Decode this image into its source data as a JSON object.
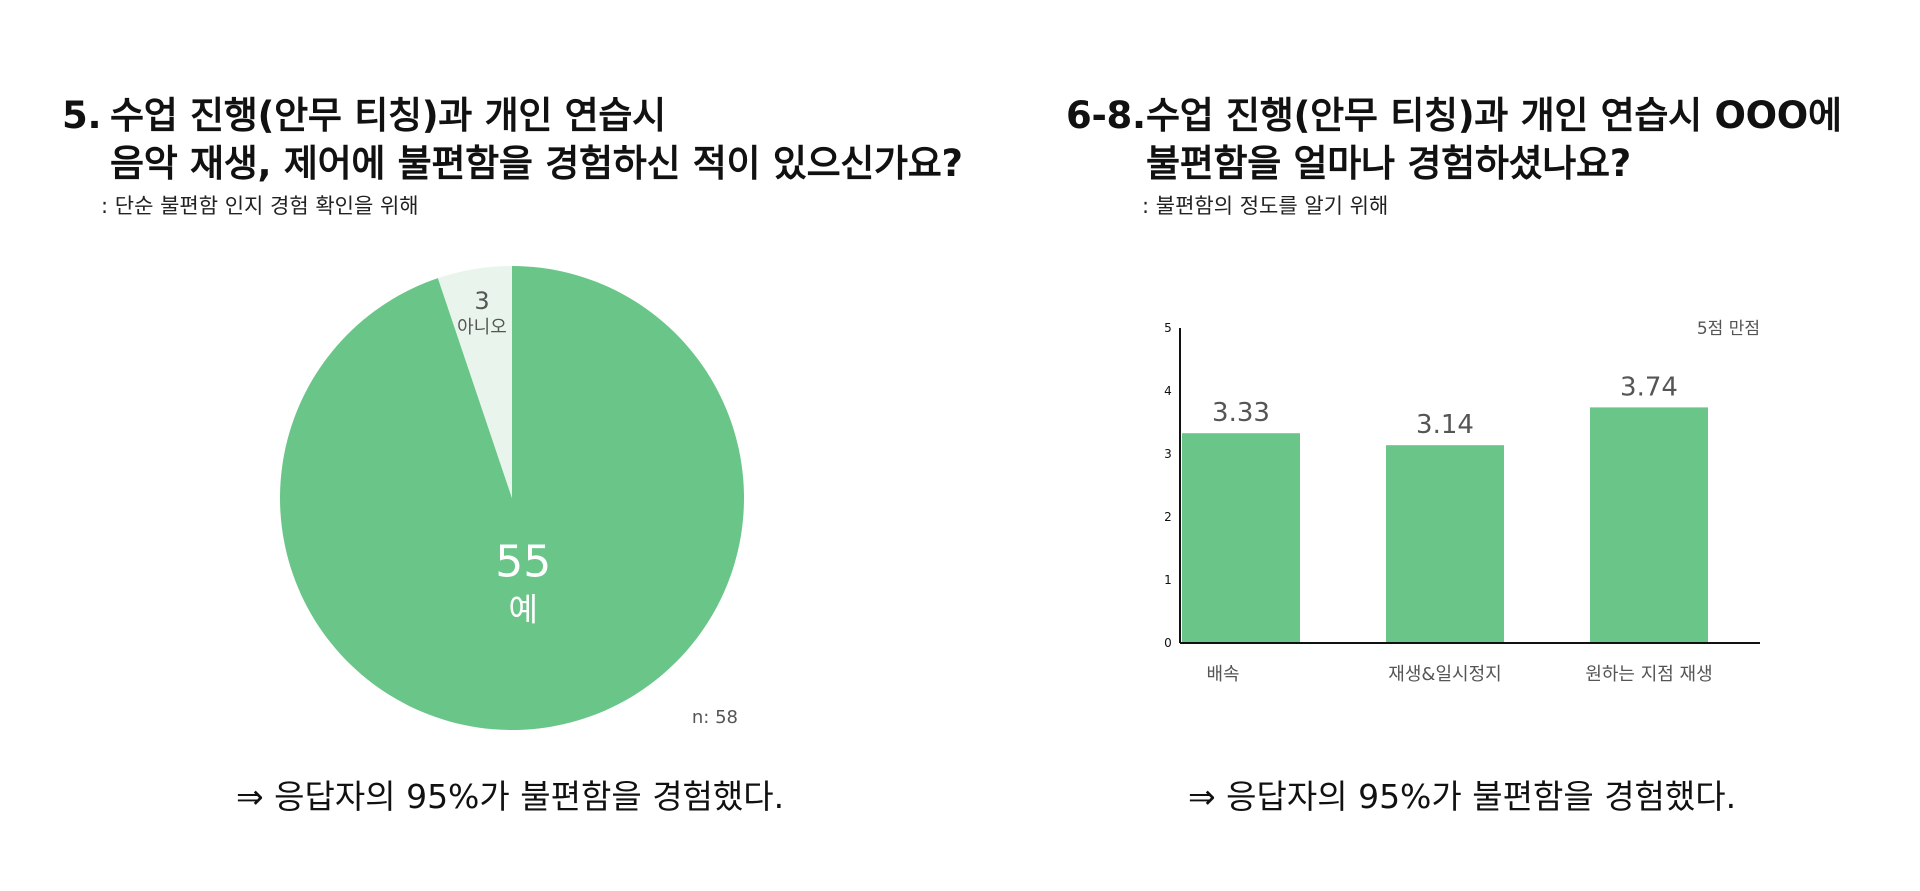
{
  "questions": [
    {
      "number": "5.",
      "title_lines": [
        "수업 진행(안무 티칭)과 개인 연습시",
        "음악 재생, 제어에 불편함을 경험하신 적이 있으신가요?"
      ],
      "subtitle": ": 단순 불편함 인지 경험 확인을 위해",
      "conclusion": "⇒ 응답자의 95%가 불편함을 경험했다."
    },
    {
      "number": "6-8.",
      "title_lines": [
        "수업 진행(안무 티칭)과 개인 연습시 OOO에",
        "불편함을 얼마나 경험하셨나요?"
      ],
      "subtitle": ": 불편함의 정도를 알기 위해",
      "conclusion": "⇒ 응답자의 95%가 불편함을 경험했다."
    }
  ],
  "colors": {
    "green": "#69C688",
    "light_green": "#E9F5EC",
    "label_gray": "#555555"
  },
  "chart_data": [
    {
      "type": "pie",
      "slices": [
        {
          "label": "예",
          "value": 55
        },
        {
          "label": "아니오",
          "value": 3
        }
      ],
      "note": "n: 58",
      "start": "top, clockwise"
    },
    {
      "type": "bar",
      "categories": [
        "배속",
        "재생&일시정지",
        "원하는 지점 재생"
      ],
      "values": [
        3.33,
        3.14,
        3.74
      ],
      "value_labels": [
        "3.33",
        "3.14",
        "3.74"
      ],
      "ylim": [
        0,
        5
      ],
      "yticks": [
        "0",
        "1",
        "2",
        "3",
        "4",
        "5"
      ],
      "annotation": "5점 만점",
      "grid": false
    }
  ]
}
